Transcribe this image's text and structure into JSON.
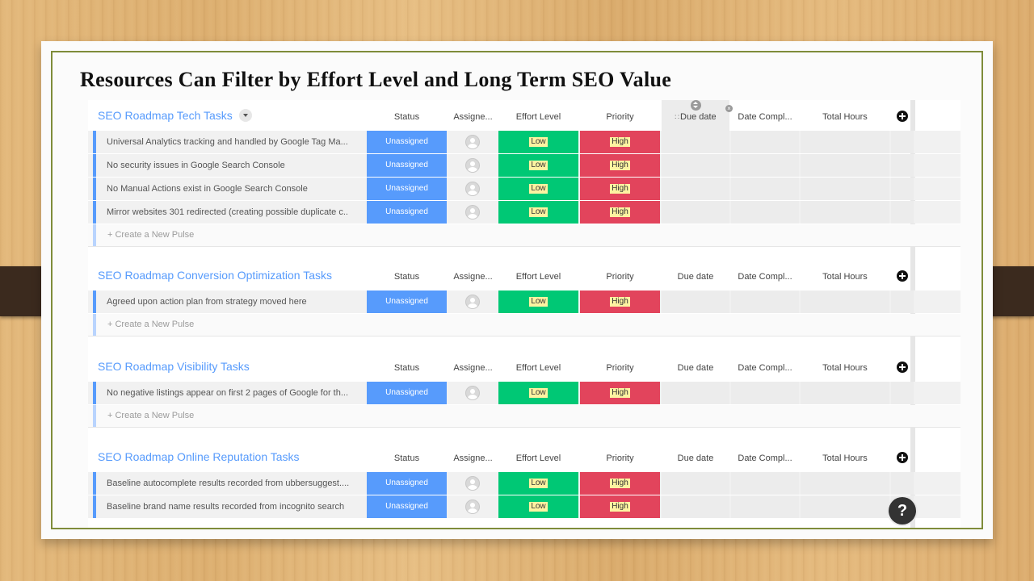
{
  "slide_title": "Resources Can Filter by Effort Level and Long Term SEO Value",
  "columns": {
    "status": "Status",
    "assignee": "Assigne...",
    "effort": "Effort Level",
    "priority": "Priority",
    "due": "Due date",
    "date_completed": "Date Compl...",
    "total_hours": "Total Hours"
  },
  "create_label": "+ Create a New Pulse",
  "help_label": "?",
  "icons": {
    "add_column": "plus-circle-icon",
    "group_menu": "chevron-down-icon",
    "sort": "sort-icon",
    "close": "close-icon",
    "drag": "drag-handle-icon",
    "avatar": "user-avatar-icon"
  },
  "colors": {
    "status_unassigned": "#579bfc",
    "effort_low": "#00c875",
    "priority_high": "#e2445c",
    "group_title": "#579bfc"
  },
  "groups": [
    {
      "title": "SEO Roadmap Tech Tasks",
      "rows": [
        {
          "name": "Universal Analytics tracking and handled by Google Tag Ma...",
          "status": "Unassigned",
          "effort": "Low",
          "priority": "High"
        },
        {
          "name": "No security issues in Google Search Console",
          "status": "Unassigned",
          "effort": "Low",
          "priority": "High"
        },
        {
          "name": "No Manual Actions exist in Google Search Console",
          "status": "Unassigned",
          "effort": "Low",
          "priority": "High"
        },
        {
          "name": "Mirror websites 301 redirected (creating possible duplicate c...",
          "status": "Unassigned",
          "effort": "Low",
          "priority": "High"
        }
      ]
    },
    {
      "title": "SEO Roadmap Conversion Optimization Tasks",
      "rows": [
        {
          "name": "Agreed upon action plan from strategy moved here",
          "status": "Unassigned",
          "effort": "Low",
          "priority": "High"
        }
      ]
    },
    {
      "title": "SEO Roadmap Visibility Tasks",
      "rows": [
        {
          "name": "No negative listings appear on first 2 pages of Google for th...",
          "status": "Unassigned",
          "effort": "Low",
          "priority": "High"
        }
      ]
    },
    {
      "title": "SEO Roadmap Online Reputation Tasks",
      "rows": [
        {
          "name": "Baseline autocomplete results recorded from ubbersuggest....",
          "status": "Unassigned",
          "effort": "Low",
          "priority": "High"
        },
        {
          "name": "Baseline brand name results recorded from incognito search",
          "status": "Unassigned",
          "effort": "Low",
          "priority": "High"
        }
      ]
    }
  ]
}
